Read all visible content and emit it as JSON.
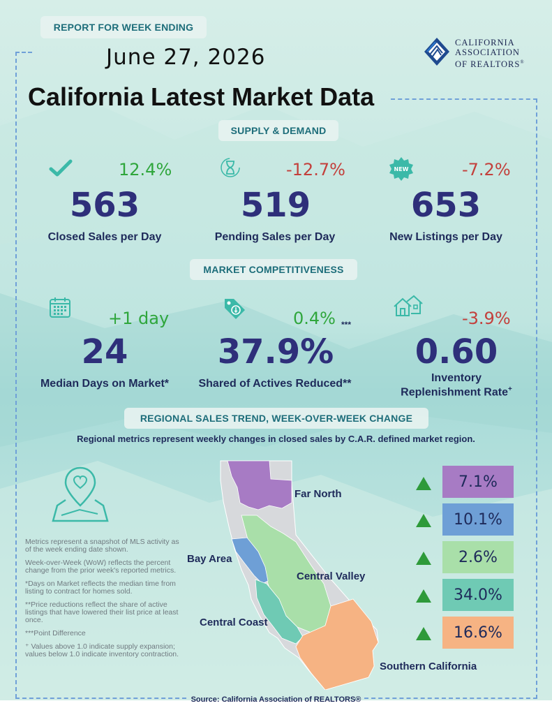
{
  "header": {
    "report_badge": "REPORT FOR WEEK ENDING",
    "date": "June 27, 2026",
    "title": "California Latest Market Data",
    "logo": {
      "line1": "CALIFORNIA",
      "line2": "ASSOCIATION",
      "line3": "OF REALTORS",
      "reg": "®"
    }
  },
  "supply_demand": {
    "heading": "SUPPLY & DEMAND",
    "metrics": [
      {
        "change": "12.4%",
        "value": "563",
        "label": "Closed Sales per Day",
        "icon": "checkmark-icon",
        "direction": "positive"
      },
      {
        "change": "-12.7%",
        "value": "519",
        "label": "Pending Sales per Day",
        "icon": "hourglass-icon",
        "direction": "negative"
      },
      {
        "change": "-7.2%",
        "value": "653",
        "label": "New Listings per Day",
        "icon": "new-badge-icon",
        "badge_text": "NEW",
        "direction": "negative"
      }
    ]
  },
  "competitiveness": {
    "heading": "MARKET COMPETITIVENESS",
    "metrics": [
      {
        "change": "+1 day",
        "value": "24",
        "label": "Median Days on Market*",
        "icon": "calendar-icon",
        "direction": "positive"
      },
      {
        "change": "0.4%",
        "change_note": "***",
        "value": "37.9%",
        "label": "Shared of Actives Reduced**",
        "icon": "price-tag-icon",
        "direction": "positive"
      },
      {
        "change": "-3.9%",
        "value": "0.60",
        "label_line1": "Inventory",
        "label_line2": "Replenishment Rate",
        "label_sup": "+",
        "icon": "houses-icon",
        "direction": "negative"
      }
    ]
  },
  "regional": {
    "heading": "REGIONAL SALES TREND, WEEK-OVER-WEEK CHANGE",
    "subtitle": "Regional metrics represent weekly changes in closed sales by C.A.R. defined market region.",
    "regions": [
      {
        "name": "Far North",
        "change": "7.1%",
        "color": "#a77bc4",
        "trend": "up"
      },
      {
        "name": "Bay Area",
        "change": "10.1%",
        "color": "#6e9fd6",
        "trend": "up"
      },
      {
        "name": "Central Valley",
        "change": "2.6%",
        "color": "#a9dfa9",
        "trend": "up"
      },
      {
        "name": "Central Coast",
        "change": "34.0%",
        "color": "#6fcab4",
        "trend": "up"
      },
      {
        "name": "Southern California",
        "change": "16.6%",
        "color": "#f6b383",
        "trend": "up"
      }
    ]
  },
  "notes": [
    "Metrics represent a snapshot of MLS activity as of the week ending date shown.",
    "Week-over-Week (WoW) reflects the percent change from the prior week's reported metrics.",
    "*Days on Market reflects the median time from listing to contract for homes sold.",
    "**Price reductions reflect the share of active listings that have lowered their list price at least once.",
    "***Point Difference",
    "⁺ Values above 1.0 indicate supply expansion; values below 1.0 indicate inventory contraction."
  ],
  "source": "Source: California Association of REALTORS®",
  "colors": {
    "positive": "#2fa63c",
    "negative": "#c3403c",
    "value": "#2e2f7a",
    "accent": "#1d6d7a",
    "map_gray": "#d7d9dc"
  }
}
